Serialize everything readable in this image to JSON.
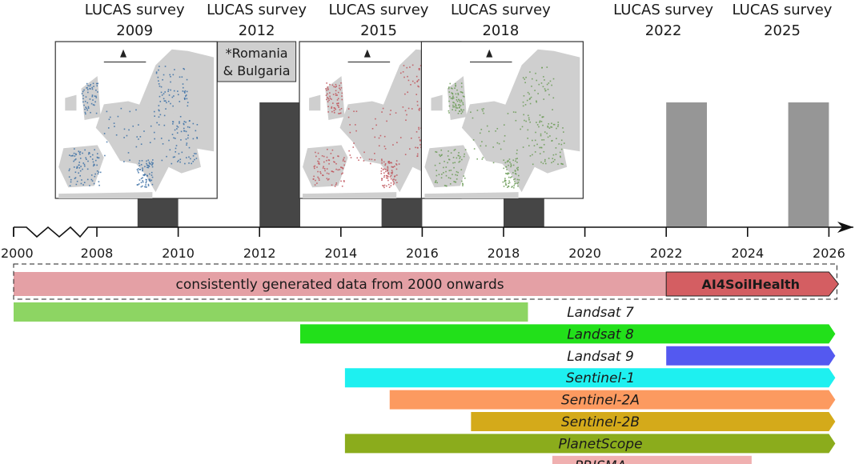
{
  "surveys": [
    {
      "line1": "LUCAS survey",
      "line2": "2009",
      "start": 2009,
      "end": 2010,
      "color": "#464646",
      "map": "blue"
    },
    {
      "line1": "LUCAS survey",
      "line2": "2012",
      "start": 2012,
      "end": 2013,
      "color": "#464646",
      "note": [
        "*Romania",
        "& Bulgaria"
      ]
    },
    {
      "line1": "LUCAS survey",
      "line2": "2015",
      "start": 2015,
      "end": 2016,
      "color": "#464646",
      "map": "red"
    },
    {
      "line1": "LUCAS survey",
      "line2": "2018",
      "start": 2018,
      "end": 2019,
      "color": "#464646",
      "map": "green"
    },
    {
      "line1": "LUCAS survey",
      "line2": "2022",
      "start": 2022,
      "end": 2023,
      "color": "#969696"
    },
    {
      "line1": "LUCAS survey",
      "line2": "2025",
      "start": 2025,
      "end": 2026,
      "color": "#969696"
    }
  ],
  "map_colors": {
    "blue": "#3a6ea5",
    "red": "#c0545a",
    "green": "#6a9a55",
    "land": "#cfcfcf",
    "sea": "#ffffff"
  },
  "axis": {
    "ticks": [
      "2000",
      "2008",
      "2010",
      "2012",
      "2014",
      "2016",
      "2018",
      "2020",
      "2022",
      "2024",
      "2026"
    ],
    "break_between": [
      "2000",
      "2008"
    ]
  },
  "data_bar": {
    "label": "consistently generated data from 2000 onwards",
    "from": 2000,
    "to": 2022,
    "color": "#e4a0a5",
    "project_label": "AI4SoilHealth",
    "project_from": 2022,
    "project_to": 2026,
    "project_color": "#d45e62"
  },
  "missions": [
    {
      "label": "Landsat 7",
      "from": 2000,
      "to": 2018.6,
      "color": "#8dd563",
      "label_outside": true
    },
    {
      "label": "Landsat 8",
      "from": 2013,
      "to": 2026,
      "color": "#22e01a",
      "arrow": true
    },
    {
      "label": "Landsat 9",
      "from": 2022,
      "to": 2026,
      "color": "#5459f0",
      "arrow": true,
      "label_outside": true
    },
    {
      "label": "Sentinel-1",
      "from": 2014.1,
      "to": 2026,
      "color": "#1ef0f0",
      "arrow": true
    },
    {
      "label": "Sentinel-2A",
      "from": 2015.2,
      "to": 2026,
      "color": "#fc9a60",
      "arrow": true
    },
    {
      "label": "Sentinel-2B",
      "from": 2017.2,
      "to": 2026,
      "color": "#d4aa1a",
      "arrow": true
    },
    {
      "label": "PlanetScope",
      "from": 2014.1,
      "to": 2026,
      "color": "#8bac1c",
      "arrow": true
    },
    {
      "label": "PRISMA",
      "from": 2019.2,
      "to": 2024.1,
      "color": "#f0b0b0"
    }
  ]
}
